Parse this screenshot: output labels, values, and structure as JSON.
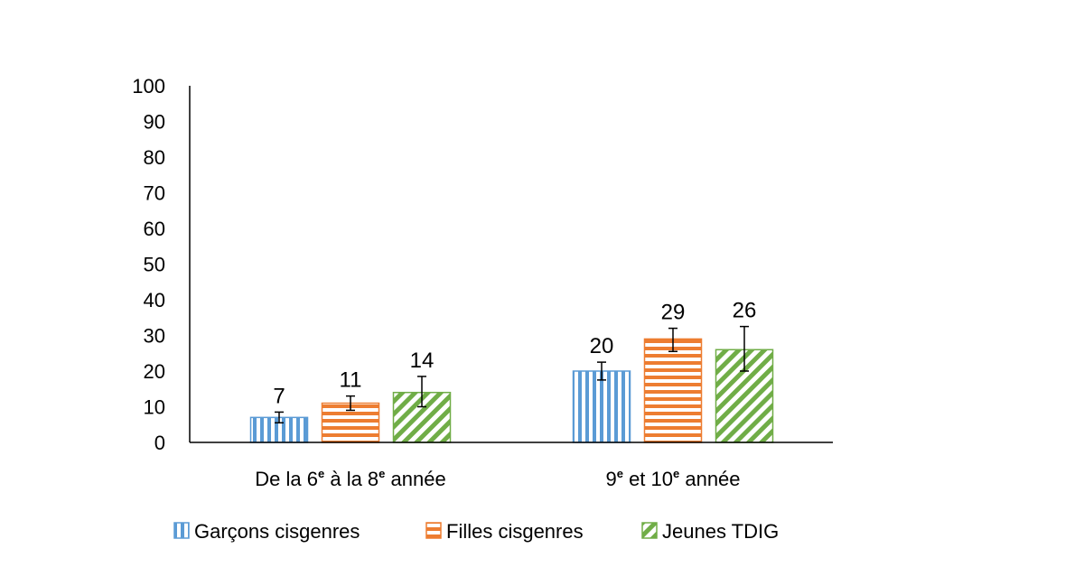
{
  "chart_data": {
    "type": "bar",
    "categories": [
      [
        "De la 6",
        "e",
        " à la 8",
        "e",
        "  année"
      ],
      [
        "9",
        "e",
        "  et 10",
        "e",
        "  année"
      ]
    ],
    "series": [
      {
        "name": "Garçons cisgenres",
        "values": [
          7,
          20
        ],
        "error_low": [
          5.5,
          17.5
        ],
        "error_high": [
          8.5,
          22.5
        ],
        "color": "#5b9bd5",
        "pattern": "vertical-stripes"
      },
      {
        "name": "Filles cisgenres",
        "values": [
          11,
          29
        ],
        "error_low": [
          9,
          25.5
        ],
        "error_high": [
          13,
          32
        ],
        "color": "#ed7d31",
        "pattern": "horizontal-stripes"
      },
      {
        "name": "Jeunes TDIG",
        "values": [
          14,
          26
        ],
        "error_low": [
          10,
          20
        ],
        "error_high": [
          18.5,
          32.5
        ],
        "color": "#70ad47",
        "pattern": "diagonal-stripes"
      }
    ],
    "data_labels": [
      [
        "7",
        "20"
      ],
      [
        "11",
        "29"
      ],
      [
        "14",
        "26"
      ]
    ],
    "y_ticks": [
      "0",
      "10",
      "20",
      "30",
      "40",
      "50",
      "60",
      "70",
      "80",
      "90",
      "100"
    ],
    "ylim": [
      0,
      100
    ],
    "title": "",
    "xlabel": "",
    "ylabel": "",
    "grid": false,
    "legend_position": "bottom"
  }
}
